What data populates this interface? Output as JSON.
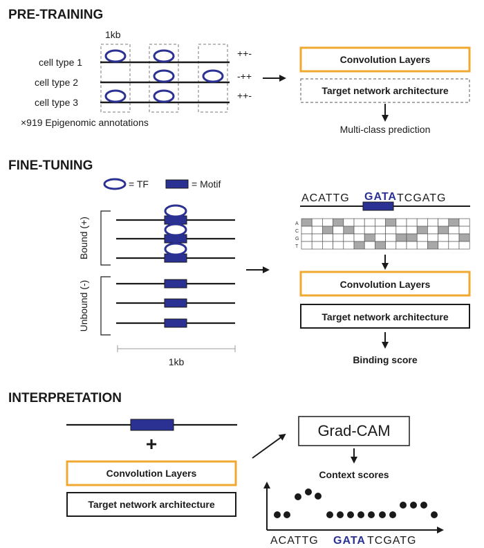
{
  "colors": {
    "accent_orange": "#f0a830",
    "motif_blue": "#2a3192",
    "line": "#1a1a1a",
    "cell_gray": "#a8a8a8"
  },
  "pretraining": {
    "title": "PRE-TRAINING",
    "window_label": "1kb",
    "cell_types": [
      "cell type 1",
      "cell type 2",
      "cell type 3"
    ],
    "signs": [
      "++-",
      "-++",
      "++-"
    ],
    "annotation_count": "×919 Epigenomic annotations",
    "conv_label": "Convolution Layers",
    "target_label": "Target network architecture",
    "prediction_label": "Multi-class prediction"
  },
  "finetuning": {
    "title": "FINE-TUNING",
    "legend_tf": "= TF",
    "legend_motif": "= Motif",
    "bound_label": "Bound (+)",
    "unbound_label": "Unbound (-)",
    "scale_label": "1kb",
    "sequence_left": "ACATTG",
    "sequence_motif": "GATA",
    "sequence_right": "TCGATG",
    "onehot_rows": [
      "A",
      "C",
      "G",
      "T"
    ],
    "conv_label": "Convolution Layers",
    "target_label": "Target network architecture",
    "output_label": "Binding score"
  },
  "interpretation": {
    "title": "INTERPRETATION",
    "conv_label": "Convolution Layers",
    "target_label": "Target network architecture",
    "gradcam_label": "Grad-CAM",
    "context_label": "Context scores",
    "sequence_left": "ACATTG",
    "sequence_motif": "GATA",
    "sequence_right": "TCGATG",
    "plus_sign": "+"
  }
}
